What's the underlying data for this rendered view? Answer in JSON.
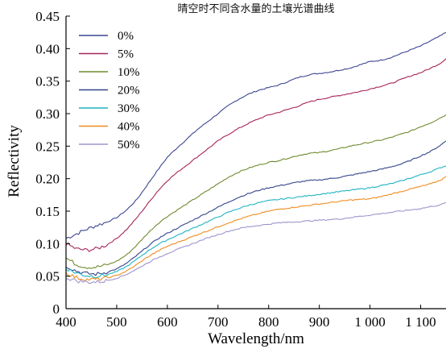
{
  "chart_data": {
    "type": "line",
    "title": "晴空时不同含水量的土壤光谱曲线",
    "xlabel": "Wavelength/nm",
    "ylabel": "Reflectivity",
    "xlim": [
      400,
      1150
    ],
    "ylim": [
      0,
      0.45
    ],
    "xticks": [
      400,
      500,
      600,
      700,
      800,
      900,
      1000,
      1100
    ],
    "xtick_labels": [
      "400",
      "500",
      "600",
      "700",
      "800",
      "900",
      "1 000",
      "1 100"
    ],
    "yticks": [
      0,
      0.05,
      0.1,
      0.15,
      0.2,
      0.25,
      0.3,
      0.35,
      0.4,
      0.45
    ],
    "ytick_labels": [
      "0",
      "0.05",
      "0.10",
      "0.15",
      "0.20",
      "0.25",
      "0.30",
      "0.35",
      "0.40",
      "0.45"
    ],
    "grid": false,
    "legend_position": "top-left",
    "x": [
      400,
      420,
      440,
      460,
      480,
      500,
      520,
      540,
      560,
      580,
      600,
      620,
      640,
      660,
      680,
      700,
      720,
      740,
      760,
      780,
      800,
      820,
      840,
      860,
      880,
      900,
      920,
      940,
      960,
      980,
      1000,
      1020,
      1040,
      1060,
      1080,
      1100,
      1120,
      1140,
      1150
    ],
    "series": [
      {
        "name": "0%",
        "color": "#3d4591",
        "values": [
          0.108,
          0.115,
          0.122,
          0.128,
          0.133,
          0.14,
          0.152,
          0.168,
          0.19,
          0.212,
          0.233,
          0.248,
          0.262,
          0.276,
          0.288,
          0.3,
          0.312,
          0.322,
          0.33,
          0.336,
          0.34,
          0.344,
          0.35,
          0.356,
          0.36,
          0.362,
          0.364,
          0.367,
          0.37,
          0.375,
          0.38,
          0.382,
          0.386,
          0.392,
          0.398,
          0.404,
          0.412,
          0.42,
          0.425
        ]
      },
      {
        "name": "5%",
        "color": "#a8245a",
        "values": [
          0.1,
          0.092,
          0.09,
          0.092,
          0.098,
          0.108,
          0.122,
          0.14,
          0.16,
          0.18,
          0.197,
          0.21,
          0.222,
          0.234,
          0.246,
          0.258,
          0.268,
          0.277,
          0.285,
          0.292,
          0.298,
          0.302,
          0.307,
          0.312,
          0.318,
          0.322,
          0.325,
          0.328,
          0.331,
          0.334,
          0.338,
          0.342,
          0.346,
          0.352,
          0.358,
          0.363,
          0.37,
          0.378,
          0.385
        ]
      },
      {
        "name": "10%",
        "color": "#6e8b2d",
        "values": [
          0.078,
          0.068,
          0.064,
          0.064,
          0.067,
          0.073,
          0.083,
          0.098,
          0.115,
          0.13,
          0.142,
          0.152,
          0.162,
          0.172,
          0.182,
          0.192,
          0.202,
          0.21,
          0.216,
          0.221,
          0.225,
          0.228,
          0.232,
          0.236,
          0.239,
          0.24,
          0.243,
          0.246,
          0.25,
          0.253,
          0.256,
          0.259,
          0.263,
          0.268,
          0.273,
          0.28,
          0.286,
          0.294,
          0.298
        ]
      },
      {
        "name": "20%",
        "color": "#33448c",
        "values": [
          0.066,
          0.058,
          0.054,
          0.053,
          0.056,
          0.061,
          0.07,
          0.082,
          0.095,
          0.107,
          0.116,
          0.124,
          0.132,
          0.14,
          0.148,
          0.156,
          0.164,
          0.171,
          0.177,
          0.182,
          0.186,
          0.189,
          0.192,
          0.195,
          0.197,
          0.198,
          0.2,
          0.202,
          0.205,
          0.208,
          0.211,
          0.214,
          0.218,
          0.222,
          0.228,
          0.235,
          0.242,
          0.252,
          0.258
        ]
      },
      {
        "name": "30%",
        "color": "#1fb3c2",
        "values": [
          0.062,
          0.055,
          0.051,
          0.05,
          0.052,
          0.057,
          0.065,
          0.076,
          0.088,
          0.098,
          0.106,
          0.113,
          0.12,
          0.127,
          0.134,
          0.141,
          0.148,
          0.154,
          0.159,
          0.163,
          0.166,
          0.168,
          0.17,
          0.172,
          0.174,
          0.176,
          0.178,
          0.18,
          0.182,
          0.184,
          0.186,
          0.189,
          0.192,
          0.196,
          0.201,
          0.206,
          0.211,
          0.217,
          0.22
        ]
      },
      {
        "name": "40%",
        "color": "#ef8c1f",
        "values": [
          0.055,
          0.048,
          0.045,
          0.045,
          0.047,
          0.051,
          0.058,
          0.068,
          0.079,
          0.088,
          0.096,
          0.102,
          0.108,
          0.114,
          0.12,
          0.126,
          0.132,
          0.137,
          0.142,
          0.146,
          0.15,
          0.153,
          0.155,
          0.157,
          0.159,
          0.161,
          0.163,
          0.165,
          0.167,
          0.168,
          0.169,
          0.172,
          0.176,
          0.18,
          0.184,
          0.188,
          0.192,
          0.198,
          0.203
        ]
      },
      {
        "name": "50%",
        "color": "#9e93cc",
        "values": [
          0.048,
          0.043,
          0.041,
          0.041,
          0.043,
          0.047,
          0.053,
          0.061,
          0.07,
          0.078,
          0.085,
          0.091,
          0.097,
          0.103,
          0.109,
          0.114,
          0.119,
          0.123,
          0.126,
          0.128,
          0.13,
          0.132,
          0.133,
          0.134,
          0.135,
          0.136,
          0.137,
          0.138,
          0.14,
          0.142,
          0.144,
          0.146,
          0.148,
          0.15,
          0.152,
          0.154,
          0.157,
          0.16,
          0.163
        ]
      }
    ]
  }
}
